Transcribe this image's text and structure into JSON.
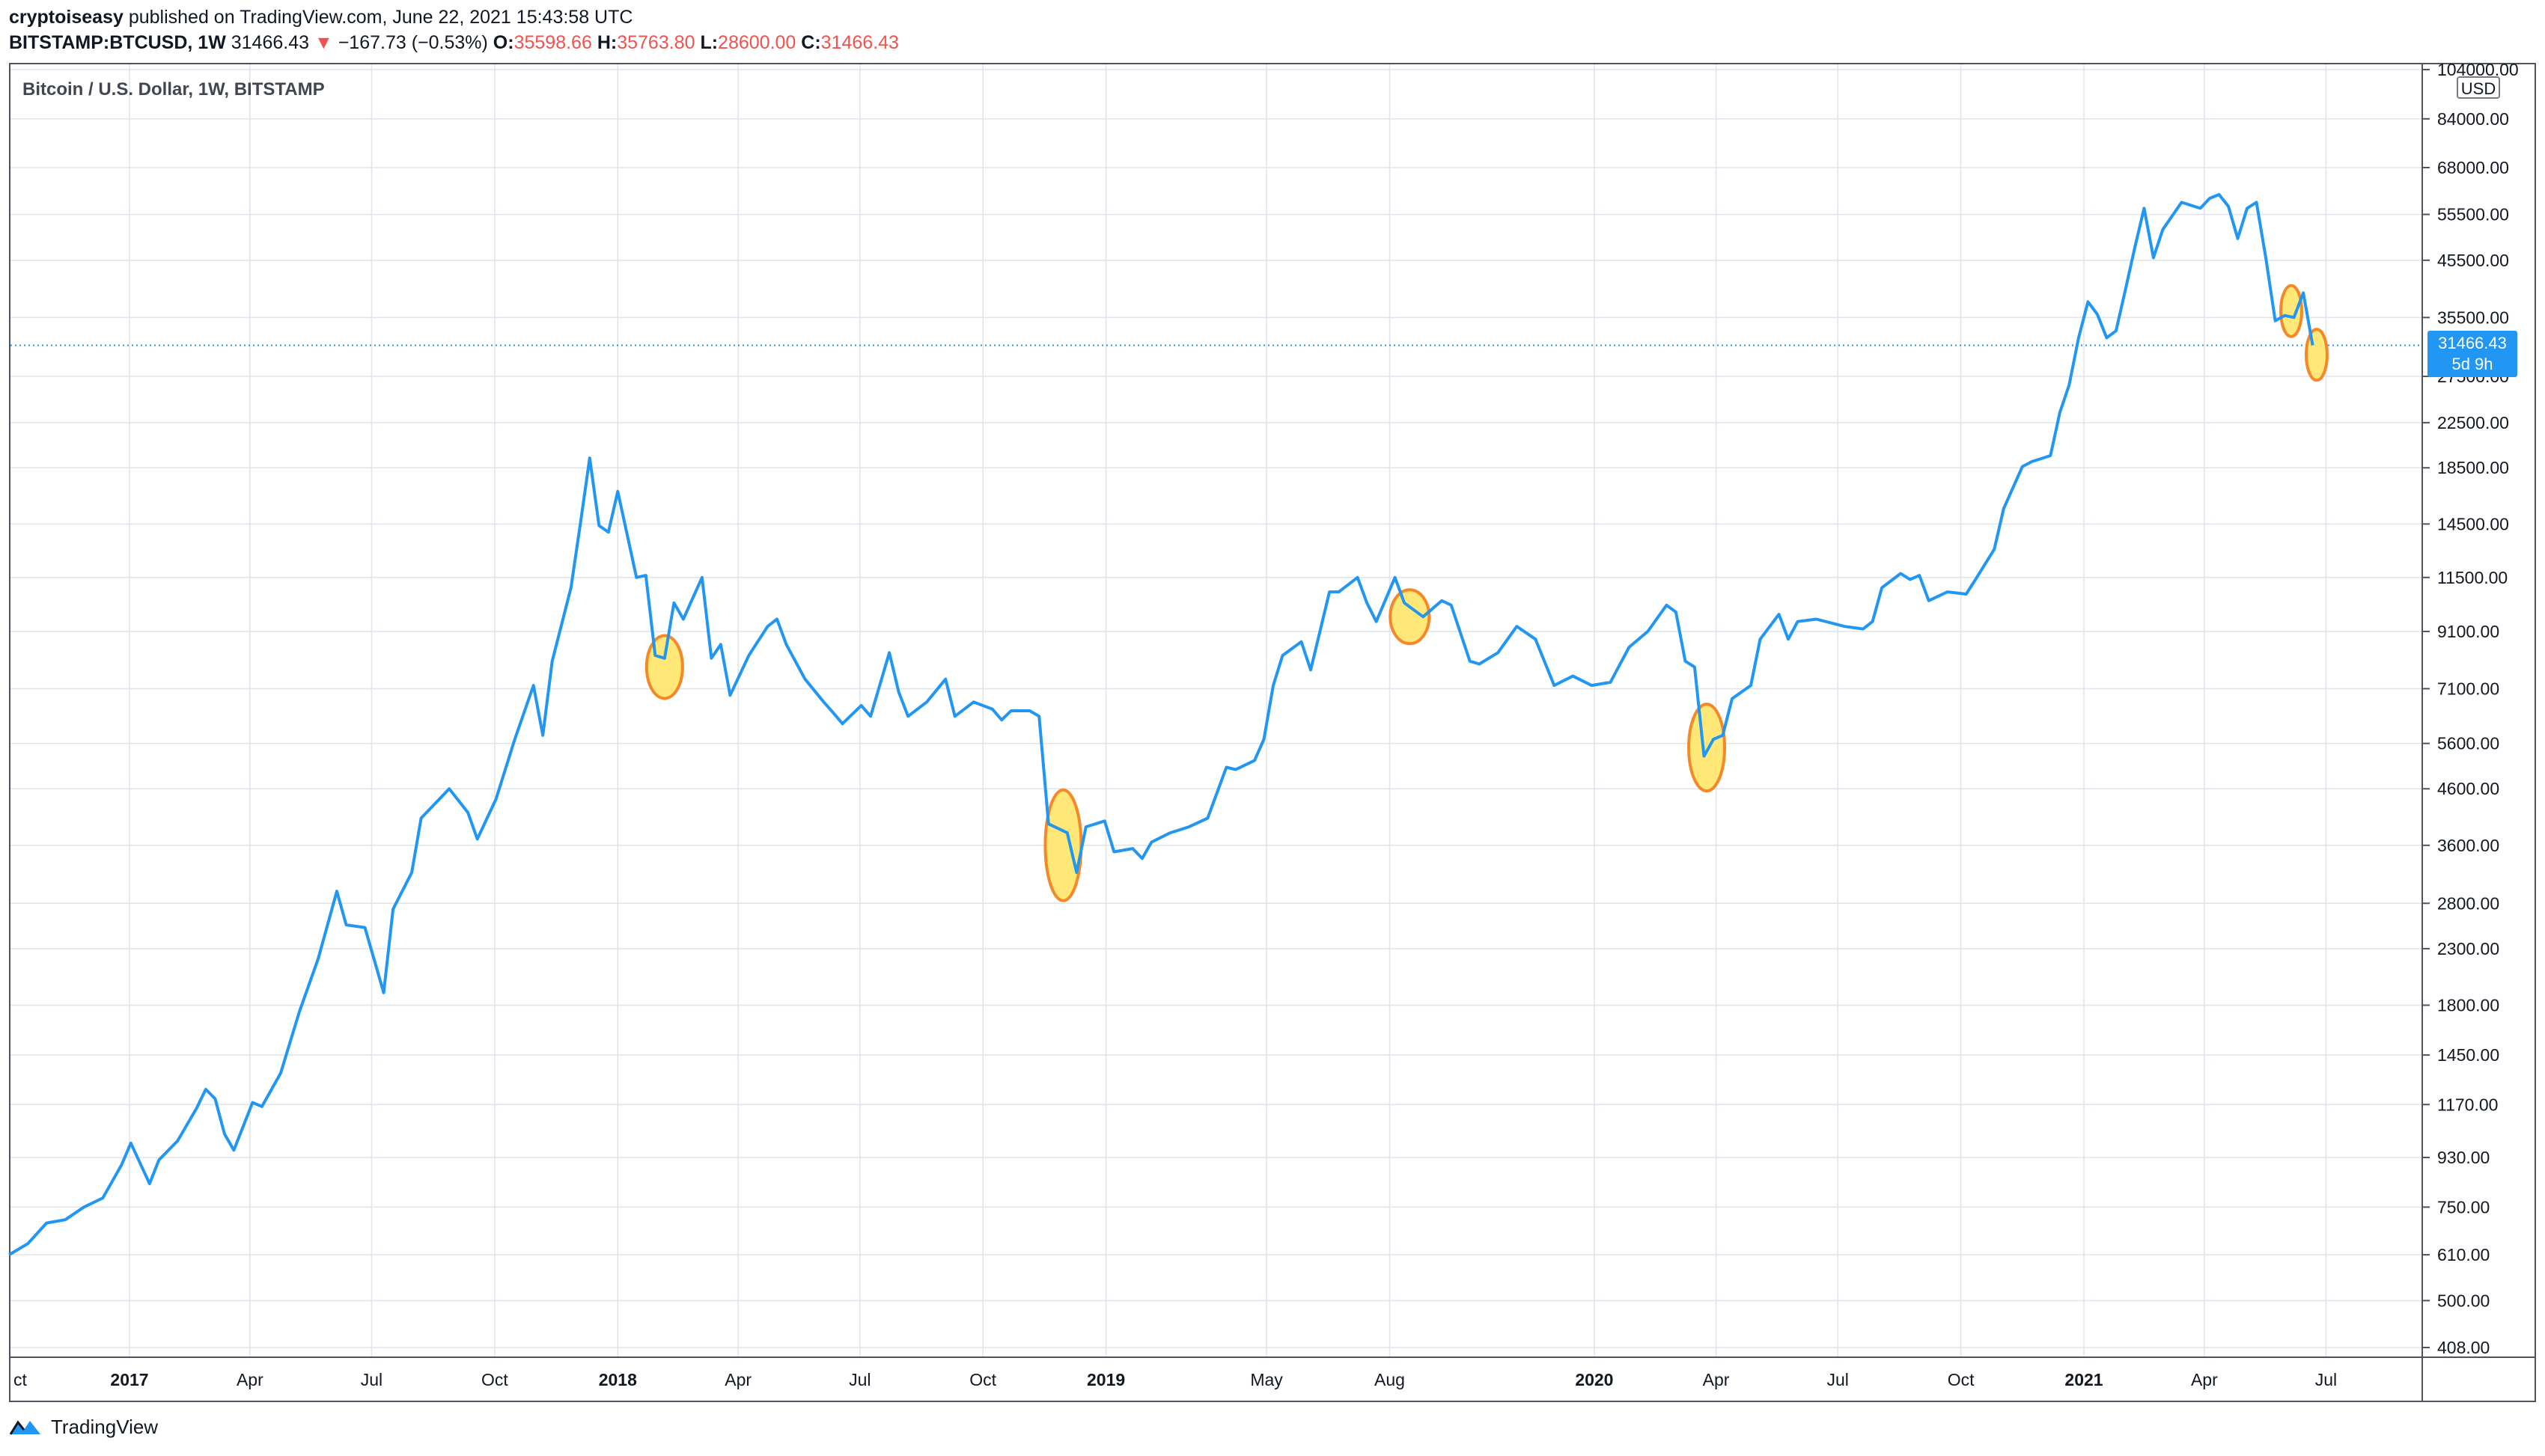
{
  "header": {
    "author": "cryptoiseasy",
    "published_text": "published on TradingView.com, June 22, 2021 15:43:58 UTC"
  },
  "ohlc": {
    "symbol": "BITSTAMP:BTCUSD, 1W",
    "last": "31466.43",
    "change_arrow": "▼",
    "change": "−167.73 (−0.53%)",
    "o_label": "O:",
    "o": "35598.66",
    "h_label": "H:",
    "h": "35763.80",
    "l_label": "L:",
    "l": "28600.00",
    "c_label": "C:",
    "c": "31466.43"
  },
  "pane_title": "Bitcoin / U.S. Dollar, 1W, BITSTAMP",
  "currency": "USD",
  "last_price": {
    "value": "31466.43",
    "countdown": "5d 9h"
  },
  "footer": {
    "brand": "TradingView"
  },
  "colors": {
    "line": "#2196f3",
    "grid": "#e0e3eb",
    "highlight_fill": "#ffe66d",
    "highlight_stroke": "#f57f17",
    "down": "#ef5350"
  },
  "chart_data": {
    "type": "line",
    "title": "Bitcoin / U.S. Dollar, 1W, BITSTAMP",
    "y_scale": "log",
    "ylim": [
      400,
      104000
    ],
    "y_ticks": [
      104000,
      84000,
      68000,
      55500,
      45500,
      35500,
      27500,
      22500,
      18500,
      14500,
      11500,
      9100,
      7100,
      5600,
      4600,
      3600,
      2800,
      2300,
      1800,
      1450,
      1170,
      930,
      750,
      610,
      500,
      408
    ],
    "y_tick_labels": [
      "104000.00",
      "84000.00",
      "68000.00",
      "55500.00",
      "45500.00",
      "35500.00",
      "27500.00",
      "22500.00",
      "18500.00",
      "14500.00",
      "11500.00",
      "9100.00",
      "7100.00",
      "5600.00",
      "4600.00",
      "3600.00",
      "2800.00",
      "2300.00",
      "1800.00",
      "1450.00",
      "1170.00",
      "930.00",
      "750.00",
      "610.00",
      "500.00",
      "408.00"
    ],
    "x_ticks": [
      {
        "label": "ct",
        "date": "2016-10-01",
        "bold": false
      },
      {
        "label": "2017",
        "date": "2017-01-01",
        "bold": true
      },
      {
        "label": "Apr",
        "date": "2017-04-01",
        "bold": false
      },
      {
        "label": "Jul",
        "date": "2017-07-01",
        "bold": false
      },
      {
        "label": "Oct",
        "date": "2017-10-01",
        "bold": false
      },
      {
        "label": "2018",
        "date": "2018-01-01",
        "bold": true
      },
      {
        "label": "Apr",
        "date": "2018-04-01",
        "bold": false
      },
      {
        "label": "Jul",
        "date": "2018-07-01",
        "bold": false
      },
      {
        "label": "Oct",
        "date": "2018-10-01",
        "bold": false
      },
      {
        "label": "2019",
        "date": "2019-01-01",
        "bold": true
      },
      {
        "label": "May",
        "date": "2019-05-01",
        "bold": false
      },
      {
        "label": "Aug",
        "date": "2019-08-01",
        "bold": false
      },
      {
        "label": "2020",
        "date": "2020-01-01",
        "bold": true
      },
      {
        "label": "Apr",
        "date": "2020-04-01",
        "bold": false
      },
      {
        "label": "Jul",
        "date": "2020-07-01",
        "bold": false
      },
      {
        "label": "Oct",
        "date": "2020-10-01",
        "bold": false
      },
      {
        "label": "2021",
        "date": "2021-01-01",
        "bold": true
      },
      {
        "label": "Apr",
        "date": "2021-04-01",
        "bold": false
      },
      {
        "label": "Jul",
        "date": "2021-07-01",
        "bold": false
      }
    ],
    "series": [
      {
        "points": [
          [
            "2016-10-03",
            610
          ],
          [
            "2016-10-17",
            640
          ],
          [
            "2016-10-31",
            700
          ],
          [
            "2016-11-14",
            710
          ],
          [
            "2016-11-28",
            750
          ],
          [
            "2016-12-12",
            780
          ],
          [
            "2016-12-26",
            900
          ],
          [
            "2017-01-02",
            990
          ],
          [
            "2017-01-16",
            830
          ],
          [
            "2017-01-23",
            920
          ],
          [
            "2017-02-06",
            1000
          ],
          [
            "2017-02-20",
            1150
          ],
          [
            "2017-02-27",
            1250
          ],
          [
            "2017-03-06",
            1200
          ],
          [
            "2017-03-13",
            1030
          ],
          [
            "2017-03-20",
            960
          ],
          [
            "2017-04-03",
            1180
          ],
          [
            "2017-04-10",
            1160
          ],
          [
            "2017-04-24",
            1340
          ],
          [
            "2017-05-08",
            1750
          ],
          [
            "2017-05-22",
            2200
          ],
          [
            "2017-06-05",
            2950
          ],
          [
            "2017-06-12",
            2550
          ],
          [
            "2017-06-26",
            2520
          ],
          [
            "2017-07-10",
            1900
          ],
          [
            "2017-07-17",
            2730
          ],
          [
            "2017-07-31",
            3200
          ],
          [
            "2017-08-07",
            4050
          ],
          [
            "2017-08-28",
            4600
          ],
          [
            "2017-09-11",
            4150
          ],
          [
            "2017-09-18",
            3700
          ],
          [
            "2017-10-02",
            4400
          ],
          [
            "2017-10-16",
            5700
          ],
          [
            "2017-10-30",
            7200
          ],
          [
            "2017-11-06",
            5800
          ],
          [
            "2017-11-13",
            8000
          ],
          [
            "2017-11-27",
            11000
          ],
          [
            "2017-12-04",
            14500
          ],
          [
            "2017-12-11",
            19300
          ],
          [
            "2017-12-18",
            14400
          ],
          [
            "2017-12-25",
            14000
          ],
          [
            "2018-01-01",
            16700
          ],
          [
            "2018-01-15",
            11500
          ],
          [
            "2018-01-22",
            11600
          ],
          [
            "2018-01-29",
            8200
          ],
          [
            "2018-02-05",
            8100
          ],
          [
            "2018-02-12",
            10300
          ],
          [
            "2018-02-19",
            9600
          ],
          [
            "2018-03-05",
            11500
          ],
          [
            "2018-03-12",
            8100
          ],
          [
            "2018-03-19",
            8600
          ],
          [
            "2018-03-26",
            6900
          ],
          [
            "2018-04-09",
            8200
          ],
          [
            "2018-04-23",
            9300
          ],
          [
            "2018-04-30",
            9600
          ],
          [
            "2018-05-07",
            8600
          ],
          [
            "2018-05-21",
            7400
          ],
          [
            "2018-06-04",
            6700
          ],
          [
            "2018-06-11",
            6400
          ],
          [
            "2018-06-18",
            6100
          ],
          [
            "2018-07-02",
            6600
          ],
          [
            "2018-07-09",
            6300
          ],
          [
            "2018-07-23",
            8300
          ],
          [
            "2018-07-30",
            7000
          ],
          [
            "2018-08-06",
            6300
          ],
          [
            "2018-08-20",
            6700
          ],
          [
            "2018-09-03",
            7400
          ],
          [
            "2018-09-10",
            6300
          ],
          [
            "2018-09-24",
            6700
          ],
          [
            "2018-10-08",
            6500
          ],
          [
            "2018-10-15",
            6200
          ],
          [
            "2018-10-22",
            6450
          ],
          [
            "2018-11-05",
            6450
          ],
          [
            "2018-11-12",
            6300
          ],
          [
            "2018-11-19",
            3950
          ],
          [
            "2018-12-03",
            3800
          ],
          [
            "2018-12-10",
            3200
          ],
          [
            "2018-12-17",
            3900
          ],
          [
            "2018-12-31",
            4000
          ],
          [
            "2019-01-07",
            3500
          ],
          [
            "2019-01-21",
            3550
          ],
          [
            "2019-01-28",
            3400
          ],
          [
            "2019-02-04",
            3650
          ],
          [
            "2019-02-18",
            3800
          ],
          [
            "2019-03-04",
            3900
          ],
          [
            "2019-03-18",
            4050
          ],
          [
            "2019-04-01",
            5050
          ],
          [
            "2019-04-08",
            5000
          ],
          [
            "2019-04-22",
            5200
          ],
          [
            "2019-04-29",
            5700
          ],
          [
            "2019-05-06",
            7200
          ],
          [
            "2019-05-13",
            8200
          ],
          [
            "2019-05-27",
            8700
          ],
          [
            "2019-06-03",
            7700
          ],
          [
            "2019-06-17",
            10800
          ],
          [
            "2019-06-24",
            10800
          ],
          [
            "2019-07-08",
            11500
          ],
          [
            "2019-07-15",
            10300
          ],
          [
            "2019-07-22",
            9500
          ],
          [
            "2019-08-05",
            11500
          ],
          [
            "2019-08-12",
            10300
          ],
          [
            "2019-08-26",
            9700
          ],
          [
            "2019-09-09",
            10400
          ],
          [
            "2019-09-16",
            10200
          ],
          [
            "2019-09-30",
            8000
          ],
          [
            "2019-10-07",
            7900
          ],
          [
            "2019-10-21",
            8300
          ],
          [
            "2019-11-04",
            9300
          ],
          [
            "2019-11-18",
            8800
          ],
          [
            "2019-12-02",
            7200
          ],
          [
            "2019-12-16",
            7500
          ],
          [
            "2019-12-30",
            7200
          ],
          [
            "2020-01-13",
            7300
          ],
          [
            "2020-01-27",
            8500
          ],
          [
            "2020-02-10",
            9100
          ],
          [
            "2020-02-24",
            10200
          ],
          [
            "2020-03-02",
            9900
          ],
          [
            "2020-03-09",
            8000
          ],
          [
            "2020-03-16",
            7800
          ],
          [
            "2020-03-23",
            5300
          ],
          [
            "2020-03-30",
            5700
          ],
          [
            "2020-04-06",
            5800
          ],
          [
            "2020-04-13",
            6800
          ],
          [
            "2020-04-27",
            7200
          ],
          [
            "2020-05-04",
            8800
          ],
          [
            "2020-05-18",
            9800
          ],
          [
            "2020-05-25",
            8800
          ],
          [
            "2020-06-01",
            9500
          ],
          [
            "2020-06-15",
            9600
          ],
          [
            "2020-07-06",
            9300
          ],
          [
            "2020-07-20",
            9200
          ],
          [
            "2020-07-27",
            9500
          ],
          [
            "2020-08-03",
            11000
          ],
          [
            "2020-08-17",
            11700
          ],
          [
            "2020-08-24",
            11400
          ],
          [
            "2020-08-31",
            11600
          ],
          [
            "2020-09-07",
            10400
          ],
          [
            "2020-09-21",
            10800
          ],
          [
            "2020-10-05",
            10700
          ],
          [
            "2020-10-12",
            11400
          ],
          [
            "2020-10-26",
            13000
          ],
          [
            "2020-11-02",
            15500
          ],
          [
            "2020-11-16",
            18600
          ],
          [
            "2020-11-23",
            19000
          ],
          [
            "2020-12-07",
            19500
          ],
          [
            "2020-12-14",
            23500
          ],
          [
            "2020-12-21",
            26500
          ],
          [
            "2020-12-28",
            32500
          ],
          [
            "2021-01-04",
            38000
          ],
          [
            "2021-01-11",
            36000
          ],
          [
            "2021-01-18",
            32500
          ],
          [
            "2021-01-25",
            33500
          ],
          [
            "2021-02-01",
            40000
          ],
          [
            "2021-02-08",
            48000
          ],
          [
            "2021-02-15",
            57000
          ],
          [
            "2021-02-22",
            46000
          ],
          [
            "2021-03-01",
            52000
          ],
          [
            "2021-03-15",
            58500
          ],
          [
            "2021-03-29",
            57000
          ],
          [
            "2021-04-05",
            59500
          ],
          [
            "2021-04-12",
            60500
          ],
          [
            "2021-04-19",
            57500
          ],
          [
            "2021-04-26",
            50000
          ],
          [
            "2021-05-03",
            57000
          ],
          [
            "2021-05-10",
            58500
          ],
          [
            "2021-05-17",
            46000
          ],
          [
            "2021-05-24",
            35000
          ],
          [
            "2021-05-31",
            35800
          ],
          [
            "2021-06-07",
            35500
          ],
          [
            "2021-06-14",
            39500
          ],
          [
            "2021-06-21",
            31466
          ]
        ]
      }
    ],
    "last_value": 31466.43,
    "highlights": [
      {
        "date": "2018-02-05",
        "value": 7800
      },
      {
        "date": "2018-11-30",
        "value": 3600
      },
      {
        "date": "2019-08-16",
        "value": 9700
      },
      {
        "date": "2020-03-25",
        "value": 5500
      },
      {
        "date": "2021-06-05",
        "value": 36500
      },
      {
        "date": "2021-06-24",
        "value": 30200
      }
    ]
  }
}
